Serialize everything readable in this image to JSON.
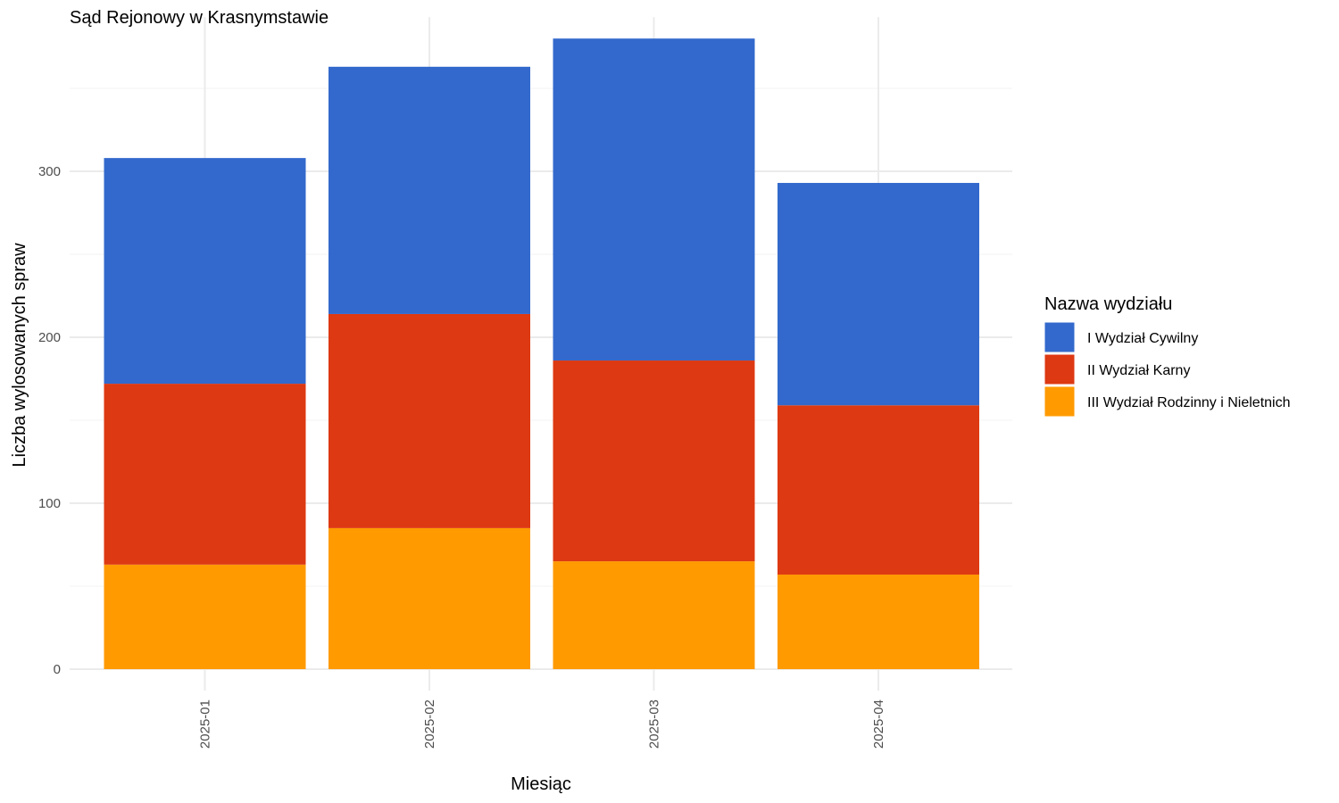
{
  "chart_data": {
    "type": "bar",
    "stacked": true,
    "title": "Sąd Rejonowy w Krasnymstawie",
    "xlabel": "Miesiąc",
    "ylabel": "Liczba wylosowanych spraw",
    "categories": [
      "2025-01",
      "2025-02",
      "2025-03",
      "2025-04"
    ],
    "ylim": [
      0,
      380
    ],
    "yticks": [
      0,
      100,
      200,
      300
    ],
    "grid": true,
    "legend": {
      "title": "Nazwa wydziału",
      "placement": "right"
    },
    "series": [
      {
        "name": "I Wydział Cywilny",
        "color": "#3369CC",
        "values": [
          136,
          149,
          194,
          134
        ]
      },
      {
        "name": "II Wydział Karny",
        "color": "#DD3912",
        "values": [
          109,
          129,
          121,
          102
        ]
      },
      {
        "name": "III Wydział Rodzinny i Nieletnich",
        "color": "#FF9A00",
        "values": [
          63,
          85,
          65,
          57
        ]
      }
    ],
    "stack_order_bottom_to_top": [
      2,
      1,
      0
    ]
  }
}
